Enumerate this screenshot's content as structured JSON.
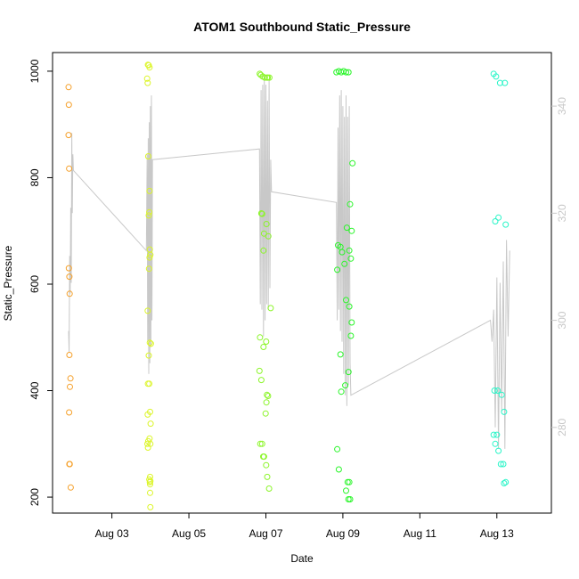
{
  "chart_data": {
    "type": "scatter",
    "title": "ATOM1 Southbound Static_Pressure",
    "xlabel": "Date",
    "ylabel": "Static_Pressure",
    "x_range": [
      "2016-08-01T11:00",
      "2016-08-14T10:00"
    ],
    "ylim": [
      170,
      1035
    ],
    "y2lim": [
      264,
      350
    ],
    "x_ticks": [
      "Aug 03",
      "Aug 05",
      "Aug 07",
      "Aug 09",
      "Aug 11",
      "Aug 13"
    ],
    "x_tick_dates": [
      "2016-08-03",
      "2016-08-05",
      "2016-08-07",
      "2016-08-09",
      "2016-08-11",
      "2016-08-13"
    ],
    "y_ticks": [
      200,
      400,
      600,
      800,
      1000
    ],
    "y2_ticks": [
      280,
      300,
      320,
      340
    ],
    "grid": false,
    "legend": "none",
    "series": [
      {
        "color": "#f5a02a",
        "x": [
          "2016-08-01T21:00",
          "2016-08-01T21:10",
          "2016-08-01T21:00",
          "2016-08-01T21:20",
          "2016-08-01T21:10",
          "2016-08-01T21:30",
          "2016-08-01T21:40",
          "2016-08-01T21:30",
          "2016-08-01T22:10",
          "2016-08-01T21:50",
          "2016-08-01T21:20",
          "2016-08-01T21:40",
          "2016-08-01T21:30",
          "2016-08-01T21:40",
          "2016-08-01T22:20"
        ],
        "y": [
          970,
          937,
          880,
          817,
          630,
          614,
          582,
          467,
          423,
          407,
          359,
          262,
          262,
          262,
          218
        ]
      },
      {
        "color": "#dcf52a",
        "x": [
          "2016-08-03T22:30",
          "2016-08-03T23:00",
          "2016-08-03T23:30",
          "2016-08-03T22:00",
          "2016-08-03T22:20",
          "2016-08-03T22:40",
          "2016-08-03T23:30",
          "2016-08-03T23:20",
          "2016-08-03T23:00",
          "2016-08-03T23:40",
          "2016-08-04T00:00",
          "2016-08-03T23:30",
          "2016-08-03T23:10",
          "2016-08-03T22:20",
          "2016-08-03T23:40",
          "2016-08-04T00:20",
          "2016-08-03T23:00",
          "2016-08-03T23:20",
          "2016-08-03T22:30",
          "2016-08-03T23:50",
          "2016-08-03T22:20",
          "2016-08-04T00:10",
          "2016-08-03T23:30",
          "2016-08-03T22:40",
          "2016-08-04T00:00",
          "2016-08-03T22:10",
          "2016-08-03T22:30",
          "2016-08-03T23:50",
          "2016-08-03T23:20",
          "2016-08-04T00:00",
          "2016-08-03T23:40",
          "2016-08-03T23:50",
          "2016-08-03T23:50",
          "2016-08-04T00:00"
        ],
        "y": [
          1012,
          1011,
          1007,
          986,
          978,
          840,
          775,
          735,
          729,
          665,
          655,
          650,
          629,
          550,
          490,
          488,
          466,
          413,
          413,
          360,
          355,
          338,
          310,
          305,
          300,
          300,
          293,
          238,
          233,
          230,
          228,
          224,
          208,
          181
        ]
      },
      {
        "color": "#8cf52a",
        "x": [
          "2016-08-06T20:10",
          "2016-08-06T20:50",
          "2016-08-06T22:00",
          "2016-08-06T23:20",
          "2016-08-07T00:40",
          "2016-08-07T01:10",
          "2016-08-07T02:10",
          "2016-08-06T21:10",
          "2016-08-06T21:40",
          "2016-08-07T00:20",
          "2016-08-06T22:50",
          "2016-08-07T01:30",
          "2016-08-06T22:30",
          "2016-08-07T03:00",
          "2016-08-06T20:20",
          "2016-08-07T00:10",
          "2016-08-06T22:30",
          "2016-08-06T20:00",
          "2016-08-06T21:10",
          "2016-08-07T00:40",
          "2016-08-07T01:20",
          "2016-08-07T00:20",
          "2016-08-06T23:50",
          "2016-08-06T20:30",
          "2016-08-06T21:40",
          "2016-08-06T22:20",
          "2016-08-06T22:50",
          "2016-08-07T00:10",
          "2016-08-07T00:50",
          "2016-08-07T02:00"
        ],
        "y": [
          995,
          993,
          990,
          988,
          988,
          988,
          988,
          733,
          732,
          713,
          695,
          690,
          663,
          555,
          500,
          492,
          482,
          437,
          420,
          392,
          390,
          378,
          357,
          300,
          300,
          276,
          276,
          260,
          238,
          216
        ]
      },
      {
        "color": "#2af52a",
        "x": [
          "2016-08-08T20:00",
          "2016-08-08T21:30",
          "2016-08-08T23:00",
          "2016-08-09T00:30",
          "2016-08-09T02:00",
          "2016-08-09T03:30",
          "2016-08-09T06:00",
          "2016-08-09T04:30",
          "2016-08-08T21:00",
          "2016-08-08T22:30",
          "2016-08-09T02:30",
          "2016-08-09T05:30",
          "2016-08-09T04:00",
          "2016-08-09T05:00",
          "2016-08-08T20:30",
          "2016-08-08T23:30",
          "2016-08-09T01:00",
          "2016-08-09T05:30",
          "2016-08-09T02:00",
          "2016-08-09T04:00",
          "2016-08-09T05:00",
          "2016-08-08T22:30",
          "2016-08-09T03:30",
          "2016-08-08T20:30",
          "2016-08-08T21:30",
          "2016-08-09T01:30",
          "2016-08-08T23:00",
          "2016-08-09T03:00",
          "2016-08-09T04:00",
          "2016-08-09T02:00",
          "2016-08-09T03:30",
          "2016-08-09T04:30"
        ],
        "y": [
          998,
          1000,
          998,
          1000,
          998,
          998,
          827,
          750,
          673,
          670,
          706,
          700,
          663,
          648,
          627,
          660,
          638,
          528,
          570,
          558,
          503,
          468,
          435,
          290,
          252,
          410,
          398,
          228,
          228,
          212,
          196,
          196
        ]
      },
      {
        "color": "#2af5c8",
        "x": [
          "2016-08-12T22:00",
          "2016-08-12T23:30",
          "2016-08-13T02:00",
          "2016-08-13T05:00",
          "2016-08-12T23:00",
          "2016-08-13T01:00",
          "2016-08-13T05:30",
          "2016-08-12T22:30",
          "2016-08-13T00:30",
          "2016-08-13T03:00",
          "2016-08-13T04:30",
          "2016-08-12T22:00",
          "2016-08-13T00:00",
          "2016-08-12T23:00",
          "2016-08-13T01:00",
          "2016-08-13T02:30",
          "2016-08-13T04:00",
          "2016-08-13T05:30",
          "2016-08-13T04:30"
        ],
        "y": [
          995,
          990,
          978,
          978,
          718,
          725,
          712,
          400,
          400,
          392,
          360,
          317,
          317,
          300,
          287,
          262,
          262,
          228,
          226
        ]
      }
    ],
    "secondary_series": {
      "color": "#c8c8c8",
      "type": "line",
      "x": [
        "2016-08-01T21:00",
        "2016-08-01T21:20",
        "2016-08-01T21:40",
        "2016-08-01T22:00",
        "2016-08-01T22:20",
        "2016-08-01T22:40",
        "2016-08-01T23:00",
        "2016-08-01T23:20",
        "2016-08-01T23:40",
        "2016-08-02T00:00",
        "2016-08-03T21:30",
        "2016-08-03T22:00",
        "2016-08-03T22:20",
        "2016-08-03T22:40",
        "2016-08-03T23:00",
        "2016-08-03T23:20",
        "2016-08-03T23:40",
        "2016-08-04T00:00",
        "2016-08-04T00:20",
        "2016-08-04T00:40",
        "2016-08-04T01:00",
        "2016-08-04T01:20",
        "2016-08-06T20:00",
        "2016-08-06T20:30",
        "2016-08-06T21:00",
        "2016-08-06T21:30",
        "2016-08-06T22:00",
        "2016-08-06T22:30",
        "2016-08-06T23:00",
        "2016-08-06T23:30",
        "2016-08-07T00:00",
        "2016-08-07T00:30",
        "2016-08-07T01:00",
        "2016-08-07T01:30",
        "2016-08-07T02:00",
        "2016-08-07T02:30",
        "2016-08-07T03:00",
        "2016-08-07T03:30",
        "2016-08-08T20:00",
        "2016-08-08T20:30",
        "2016-08-08T21:00",
        "2016-08-08T21:30",
        "2016-08-08T22:00",
        "2016-08-08T22:30",
        "2016-08-08T23:00",
        "2016-08-08T23:30",
        "2016-08-09T00:00",
        "2016-08-09T00:30",
        "2016-08-09T01:00",
        "2016-08-09T01:30",
        "2016-08-09T02:00",
        "2016-08-09T02:30",
        "2016-08-09T03:00",
        "2016-08-09T03:30",
        "2016-08-09T04:00",
        "2016-08-09T04:30",
        "2016-08-09T05:00",
        "2016-08-12T20:00",
        "2016-08-12T21:00",
        "2016-08-12T22:00",
        "2016-08-12T23:00",
        "2016-08-13T00:00",
        "2016-08-13T01:00",
        "2016-08-13T02:00",
        "2016-08-13T03:00",
        "2016-08-13T04:00",
        "2016-08-13T05:00",
        "2016-08-13T06:00",
        "2016-08-13T07:00",
        "2016-08-13T08:00"
      ],
      "y": [
        298,
        294,
        312,
        305,
        321,
        307,
        335,
        320,
        331,
        328,
        313,
        331,
        296,
        334,
        290,
        337,
        292,
        340,
        295,
        342,
        300,
        330,
        332,
        303,
        343,
        302,
        344,
        297,
        346,
        300,
        344,
        303,
        341,
        302,
        345,
        306,
        330,
        324,
        322,
        300,
        336,
        302,
        342,
        298,
        343,
        296,
        340,
        290,
        338,
        286,
        342,
        284,
        338,
        288,
        340,
        292,
        286,
        300,
        296,
        302,
        280,
        308,
        276,
        307,
        283,
        311,
        276,
        315,
        297,
        313
      ]
    }
  }
}
